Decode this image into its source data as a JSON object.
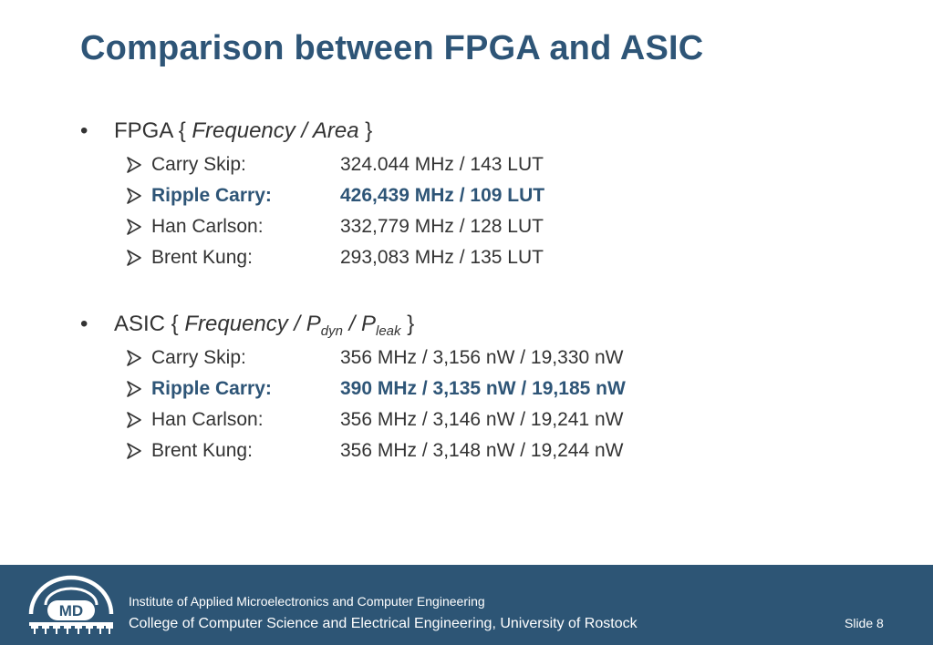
{
  "title": "Comparison between FPGA and ASIC",
  "fpga": {
    "bullet": "•",
    "label": "FPGA {",
    "metric": "Frequency / Area",
    "close": "}",
    "items": [
      {
        "name": "Carry Skip:",
        "value": "324.044 MHz / 143 LUT"
      },
      {
        "name": "Ripple Carry:",
        "value": "426,439 MHz / 109 LUT"
      },
      {
        "name": "Han Carlson:",
        "value": "332,779 MHz / 128 LUT"
      },
      {
        "name": "Brent Kung:",
        "value": "293,083 MHz / 135 LUT"
      }
    ]
  },
  "asic": {
    "bullet": "•",
    "label": "ASIC {",
    "metric_freq": "Frequency / P",
    "sub_dyn": "dyn",
    "metric_sep": " / P",
    "sub_leak": "leak",
    "close": "}",
    "items": [
      {
        "name": "Carry Skip:",
        "value": "356 MHz / 3,156 nW / 19,330 nW"
      },
      {
        "name": "Ripple Carry:",
        "value": "390 MHz / 3,135 nW / 19,185 nW"
      },
      {
        "name": "Han Carlson:",
        "value": "356 MHz / 3,146 nW / 19,241 nW"
      },
      {
        "name": "Brent Kung:",
        "value": "356 MHz / 3,148 nW / 19,244 nW"
      }
    ]
  },
  "footer": {
    "logo_text": "MD",
    "institute": "Institute of Applied Microelectronics and Computer Engineering",
    "college": "College of Computer Science and Electrical Engineering, University of Rostock",
    "slide": "Slide 8"
  },
  "colors": {
    "title": "#2e5577",
    "footer_bg": "#2d5575",
    "text": "#333333"
  },
  "icons": {
    "list_marker": "arrowhead-bullet-icon",
    "logo": "md-university-logo"
  }
}
